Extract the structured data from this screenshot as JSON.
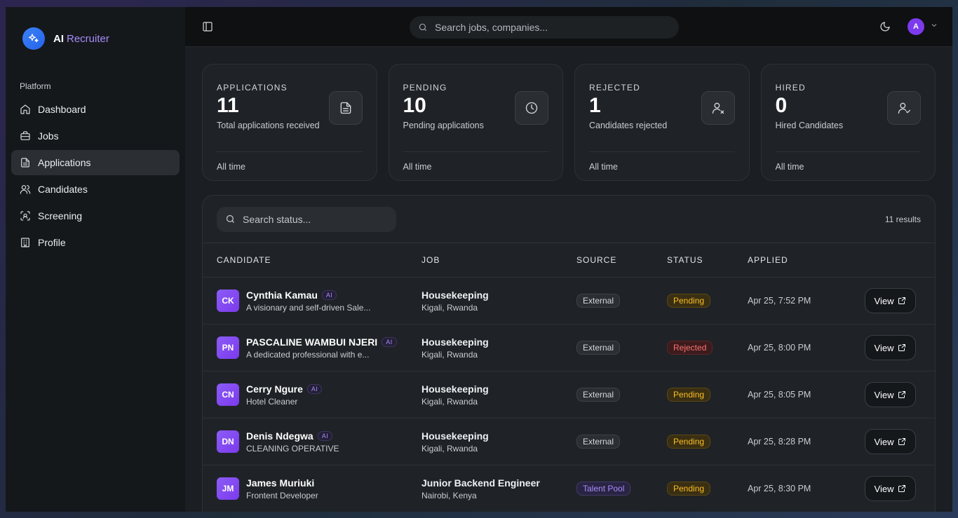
{
  "brand": {
    "name": "AI",
    "accent": "Recruiter"
  },
  "sidebar": {
    "section": "Platform",
    "items": [
      {
        "label": "Dashboard",
        "icon": "home-icon"
      },
      {
        "label": "Jobs",
        "icon": "briefcase-icon"
      },
      {
        "label": "Applications",
        "icon": "file-icon",
        "active": true
      },
      {
        "label": "Candidates",
        "icon": "users-icon"
      },
      {
        "label": "Screening",
        "icon": "scan-icon"
      },
      {
        "label": "Profile",
        "icon": "building-icon"
      }
    ]
  },
  "topbar": {
    "search_placeholder": "Search jobs, companies...",
    "avatar_initial": "A"
  },
  "stats": [
    {
      "label": "APPLICATIONS",
      "value": "11",
      "desc": "Total applications received",
      "foot": "All time",
      "icon": "document-icon"
    },
    {
      "label": "PENDING",
      "value": "10",
      "desc": "Pending applications",
      "foot": "All time",
      "icon": "clock-icon"
    },
    {
      "label": "REJECTED",
      "value": "1",
      "desc": "Candidates rejected",
      "foot": "All time",
      "icon": "user-x-icon"
    },
    {
      "label": "HIRED",
      "value": "0",
      "desc": "Hired Candidates",
      "foot": "All time",
      "icon": "user-check-icon"
    }
  ],
  "table": {
    "search_placeholder": "Search status...",
    "results": "11 results",
    "headers": {
      "candidate": "CANDIDATE",
      "job": "JOB",
      "source": "SOURCE",
      "status": "STATUS",
      "applied": "APPLIED"
    },
    "view_label": "View",
    "ai_label": "AI",
    "rows": [
      {
        "initials": "CK",
        "name": "Cynthia Kamau",
        "ai": true,
        "sub": "A visionary and self-driven Sale...",
        "job": "Housekeeping",
        "location": "Kigali, Rwanda",
        "source": "External",
        "status": "Pending",
        "applied": "Apr 25, 7:52 PM"
      },
      {
        "initials": "PN",
        "name": "PASCALINE WAMBUI NJERI",
        "ai": true,
        "sub": "A dedicated professional with e...",
        "job": "Housekeeping",
        "location": "Kigali, Rwanda",
        "source": "External",
        "status": "Rejected",
        "applied": "Apr 25, 8:00 PM"
      },
      {
        "initials": "CN",
        "name": "Cerry Ngure",
        "ai": true,
        "sub": "Hotel Cleaner",
        "job": "Housekeeping",
        "location": "Kigali, Rwanda",
        "source": "External",
        "status": "Pending",
        "applied": "Apr 25, 8:05 PM"
      },
      {
        "initials": "DN",
        "name": "Denis Ndegwa",
        "ai": true,
        "sub": "CLEANING OPERATIVE",
        "job": "Housekeeping",
        "location": "Kigali, Rwanda",
        "source": "External",
        "status": "Pending",
        "applied": "Apr 25, 8:28 PM"
      },
      {
        "initials": "JM",
        "name": "James Muriuki",
        "ai": false,
        "sub": "Frontent Developer",
        "job": "Junior Backend Engineer",
        "location": "Nairobi, Kenya",
        "source": "Talent Pool",
        "status": "Pending",
        "applied": "Apr 25, 8:30 PM"
      }
    ]
  }
}
